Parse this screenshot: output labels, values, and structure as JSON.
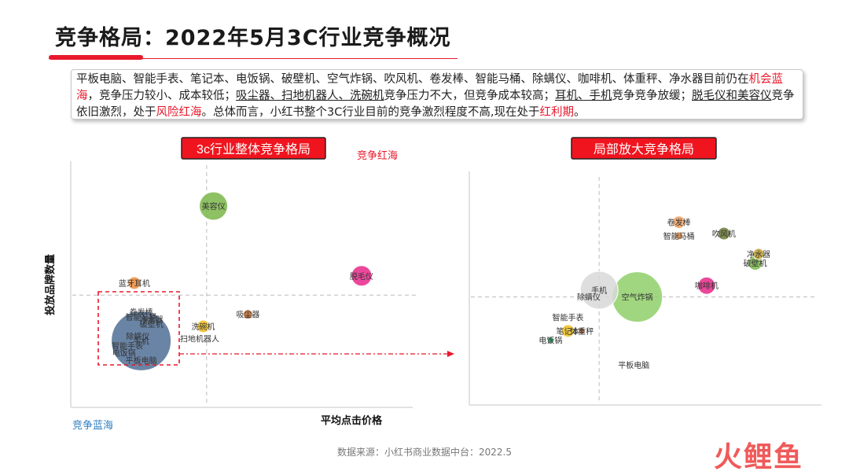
{
  "title": "竞争格局：2022年5月3C行业竞争概况",
  "summary": {
    "s1": "平板电脑、智能手表、笔记本、电饭锅、破壁机、空气炸锅、吹风机、卷发棒、智能马桶、除螨仪、咖啡机、体重秤、净水器目前仍在",
    "s2": "机会蓝海",
    "s3": "，竞争压力较小、成本较低；",
    "s4": "吸尘器、扫地机器人、洗碗机",
    "s5": "竞争压力不大，但竞争成本较高；",
    "s6": "耳机、手机",
    "s7": "竞争竞争放缓；",
    "s8": "脱毛仪和美容仪",
    "s9": "竞争依旧激烈，处于",
    "s10": "风险红海",
    "s11": "。总体而言，小红书整个3C行业目前的竞争激烈程度不高,现在处于",
    "s12": "红利期",
    "s13": "。"
  },
  "footer": "数据来源：小红书商业数据中台：2022.5",
  "logo": "火鲤鱼",
  "colors": {
    "accent": "#e8192c",
    "blue_label": "#2f7fc1"
  },
  "chart_data": [
    {
      "type": "scatter",
      "subtype": "bubble",
      "title": "3c行业整体竞争格局",
      "xlabel": "平均点击价格",
      "ylabel": "投放品牌数量",
      "zone_labels": {
        "top_right": "竞争红海",
        "bottom_left": "竞争蓝海"
      },
      "points": [
        {
          "label": "美容仪",
          "x": 0.41,
          "y": 0.83,
          "r": 18,
          "color": "#7ab648"
        },
        {
          "label": "脱毛仪",
          "x": 0.84,
          "y": 0.54,
          "r": 13,
          "color": "#e8288a"
        },
        {
          "label": "蓝牙耳机",
          "x": 0.18,
          "y": 0.51,
          "r": 8,
          "color": "#f08c3a"
        },
        {
          "label": "吸尘器",
          "x": 0.51,
          "y": 0.38,
          "r": 6,
          "color": "#b5652c"
        },
        {
          "label": "洗碗机",
          "x": 0.38,
          "y": 0.33,
          "r": 8,
          "color": "#f0c020"
        },
        {
          "label": "扫地机器人",
          "x": 0.37,
          "y": 0.28,
          "r": 0,
          "color": "#888888"
        },
        {
          "label": "手机",
          "x": 0.2,
          "y": 0.27,
          "r": 38,
          "color": "#506f95"
        },
        {
          "label": "卷发棒",
          "x": 0.2,
          "y": 0.39,
          "r": 0,
          "color": "#888888"
        },
        {
          "label": "智能马桶",
          "x": 0.2,
          "y": 0.37,
          "r": 0,
          "color": "#888888"
        },
        {
          "label": "破壁机",
          "x": 0.23,
          "y": 0.34,
          "r": 0,
          "color": "#888888"
        },
        {
          "label": "净水器",
          "x": 0.23,
          "y": 0.36,
          "r": 0,
          "color": "#888888"
        },
        {
          "label": "除螨仪",
          "x": 0.19,
          "y": 0.29,
          "r": 0,
          "color": "#888888"
        },
        {
          "label": "智能手表",
          "x": 0.16,
          "y": 0.25,
          "r": 0,
          "color": "#888888"
        },
        {
          "label": "电饭锅",
          "x": 0.15,
          "y": 0.22,
          "r": 0,
          "color": "#888888"
        },
        {
          "label": "平板电脑",
          "x": 0.2,
          "y": 0.19,
          "r": 0,
          "color": "#888888"
        }
      ],
      "mean_lines": {
        "x": 0.39,
        "y": 0.46
      }
    },
    {
      "type": "scatter",
      "subtype": "bubble",
      "title": "局部放大竞争格局",
      "points": [
        {
          "label": "卷发棒",
          "x": 0.6,
          "y": 0.8,
          "r": 8,
          "color": "#f0a060"
        },
        {
          "label": "智能马桶",
          "x": 0.6,
          "y": 0.74,
          "r": 5,
          "color": "#d08040"
        },
        {
          "label": "吹风机",
          "x": 0.73,
          "y": 0.75,
          "r": 8,
          "color": "#6b7a3a"
        },
        {
          "label": "净水器",
          "x": 0.83,
          "y": 0.66,
          "r": 7,
          "color": "#c0a030"
        },
        {
          "label": "破壁机",
          "x": 0.82,
          "y": 0.62,
          "r": 9,
          "color": "#7ab648"
        },
        {
          "label": "咖啡机",
          "x": 0.68,
          "y": 0.52,
          "r": 11,
          "color": "#e8288a"
        },
        {
          "label": "空气炸锅",
          "x": 0.48,
          "y": 0.47,
          "r": 32,
          "color": "#8fcf6a"
        },
        {
          "label": "手机",
          "x": 0.37,
          "y": 0.5,
          "r": 24,
          "color": "#d8d8d8"
        },
        {
          "label": "除螨仪",
          "x": 0.34,
          "y": 0.47,
          "r": 0,
          "color": "#888888"
        },
        {
          "label": "智能手表",
          "x": 0.28,
          "y": 0.38,
          "r": 0,
          "color": "#888888"
        },
        {
          "label": "笔记本",
          "x": 0.28,
          "y": 0.32,
          "r": 8,
          "color": "#f0c020"
        },
        {
          "label": "体重秤",
          "x": 0.32,
          "y": 0.32,
          "r": 4,
          "color": "#b5652c"
        },
        {
          "label": "电饭锅",
          "x": 0.23,
          "y": 0.28,
          "r": 4,
          "color": "#20a060"
        },
        {
          "label": "平板电脑",
          "x": 0.47,
          "y": 0.17,
          "r": 0,
          "color": "#888888"
        }
      ],
      "mean_lines": {
        "x": 0.37,
        "y": 0.47
      }
    }
  ]
}
